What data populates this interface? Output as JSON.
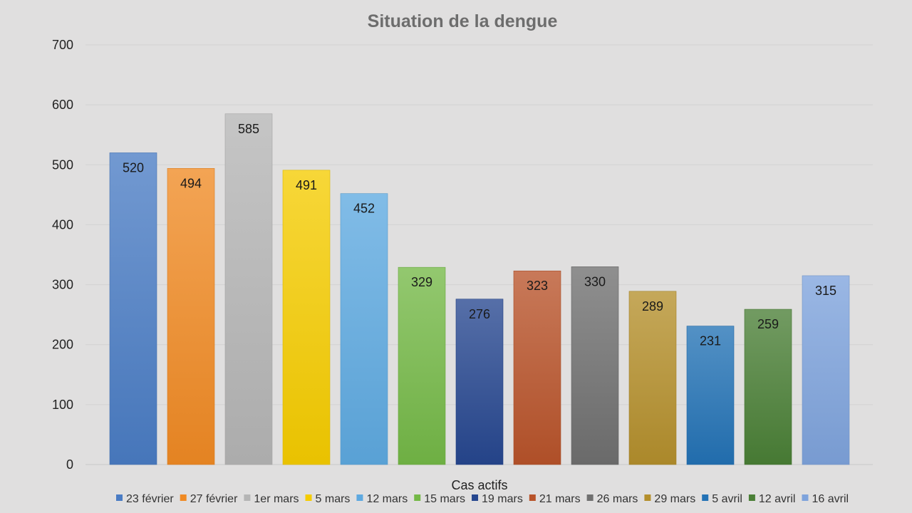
{
  "chart_data": {
    "type": "bar",
    "title": "Situation de la dengue",
    "xlabel": "Cas actifs",
    "ylabel": "",
    "ylim": [
      0,
      700
    ],
    "yticks": [
      0,
      100,
      200,
      300,
      400,
      500,
      600,
      700
    ],
    "grid": true,
    "legend_position": "bottom",
    "data_labels": true,
    "categories": [
      "23 février",
      "27 février",
      "1er mars",
      "5 mars",
      "12 mars",
      "15 mars",
      "19 mars",
      "21 mars",
      "26 mars",
      "29 mars",
      "5 avril",
      "12 avril",
      "16 avril"
    ],
    "values": [
      520,
      494,
      585,
      491,
      452,
      329,
      276,
      323,
      330,
      289,
      231,
      259,
      315
    ],
    "colors": [
      "#4a7cc4",
      "#f08a24",
      "#b5b5b5",
      "#f5cc00",
      "#5ea9e0",
      "#74b846",
      "#26478f",
      "#b8532a",
      "#707070",
      "#b48f2c",
      "#2372b5",
      "#4a7f36",
      "#7ea3dc"
    ]
  }
}
